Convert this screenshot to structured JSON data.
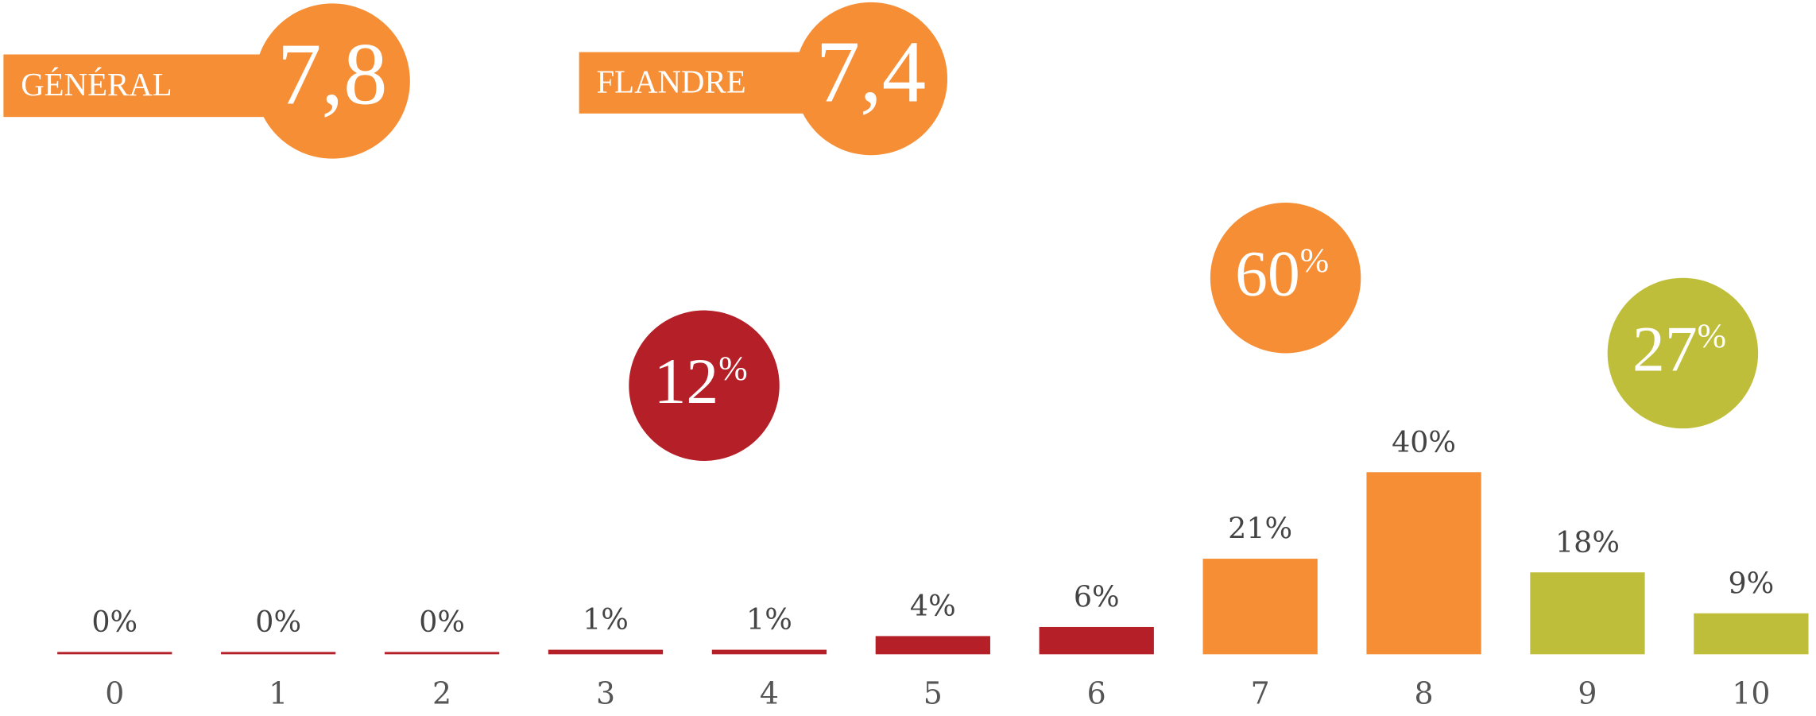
{
  "chart_data": {
    "type": "bar",
    "badges": [
      {
        "label": "GÉNÉRAL",
        "score": "7,8",
        "color": "#f58e35"
      },
      {
        "label": "FLANDRE",
        "score": "7,4",
        "color": "#f58e35"
      }
    ],
    "summary": [
      {
        "value": 12,
        "label": "12%",
        "color": "#b51f28"
      },
      {
        "value": 60,
        "label": "60%",
        "color": "#f58e35"
      },
      {
        "value": 27,
        "label": "27%",
        "color": "#bfbe3a"
      }
    ],
    "categories": [
      "0",
      "1",
      "2",
      "3",
      "4",
      "5",
      "6",
      "7",
      "8",
      "9",
      "10"
    ],
    "values": [
      0,
      0,
      0,
      1,
      1,
      4,
      6,
      21,
      40,
      18,
      9
    ],
    "value_labels": [
      "0%",
      "0%",
      "0%",
      "1%",
      "1%",
      "4%",
      "6%",
      "21%",
      "40%",
      "18%",
      "9%"
    ],
    "colors": [
      "#b51f28",
      "#b51f28",
      "#b51f28",
      "#b51f28",
      "#b51f28",
      "#b51f28",
      "#b51f28",
      "#f58e35",
      "#f58e35",
      "#bfbe3a",
      "#bfbe3a"
    ]
  }
}
